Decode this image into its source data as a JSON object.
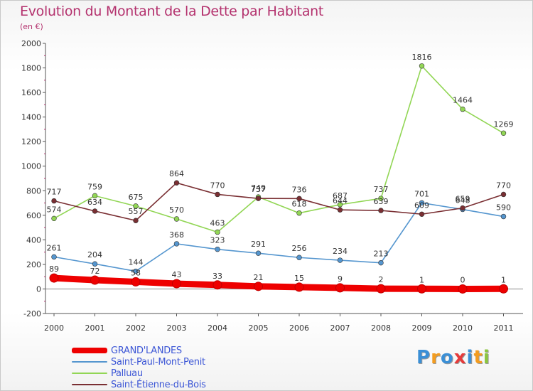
{
  "chart_data": {
    "type": "line",
    "title": "Evolution du Montant de la Dette par Habitant",
    "subtitle": "(en €)",
    "xlabel": "",
    "ylabel": "",
    "x": [
      "2000",
      "2001",
      "2002",
      "2003",
      "2004",
      "2005",
      "2006",
      "2007",
      "2008",
      "2009",
      "2010",
      "2011"
    ],
    "ylim": [
      -200,
      2000
    ],
    "yticks": [
      "-200",
      "0",
      "200",
      "400",
      "600",
      "800",
      "1000",
      "1200",
      "1400",
      "1600",
      "1800",
      "2000"
    ],
    "grid": false,
    "legend_position": "bottom-left",
    "series": [
      {
        "name": "GRAND'LANDES",
        "color": "#ee0000",
        "values": [
          89,
          72,
          58,
          43,
          33,
          21,
          15,
          9,
          2,
          1,
          0,
          1
        ]
      },
      {
        "name": "Saint-Paul-Mont-Penit",
        "color": "#5596cf",
        "values": [
          261,
          204,
          144,
          368,
          323,
          291,
          256,
          234,
          213,
          701,
          648,
          590
        ]
      },
      {
        "name": "Palluau",
        "color": "#92d655",
        "values": [
          574,
          759,
          675,
          570,
          463,
          749,
          618,
          687,
          737,
          1816,
          1464,
          1269
        ]
      },
      {
        "name": "Saint-Étienne-du-Bois",
        "color": "#7a2f33",
        "values": [
          717,
          634,
          557,
          864,
          770,
          737,
          736,
          644,
          639,
          609,
          659,
          770
        ]
      }
    ]
  },
  "logo": {
    "letters": [
      "P",
      "r",
      "o",
      "x",
      "i",
      "t",
      "i"
    ],
    "colors": [
      "#3b8fd6",
      "#f39c1f",
      "#3b8fd6",
      "#e63b3b",
      "#3b8fd6",
      "#f39c1f",
      "#8cc63f"
    ]
  }
}
